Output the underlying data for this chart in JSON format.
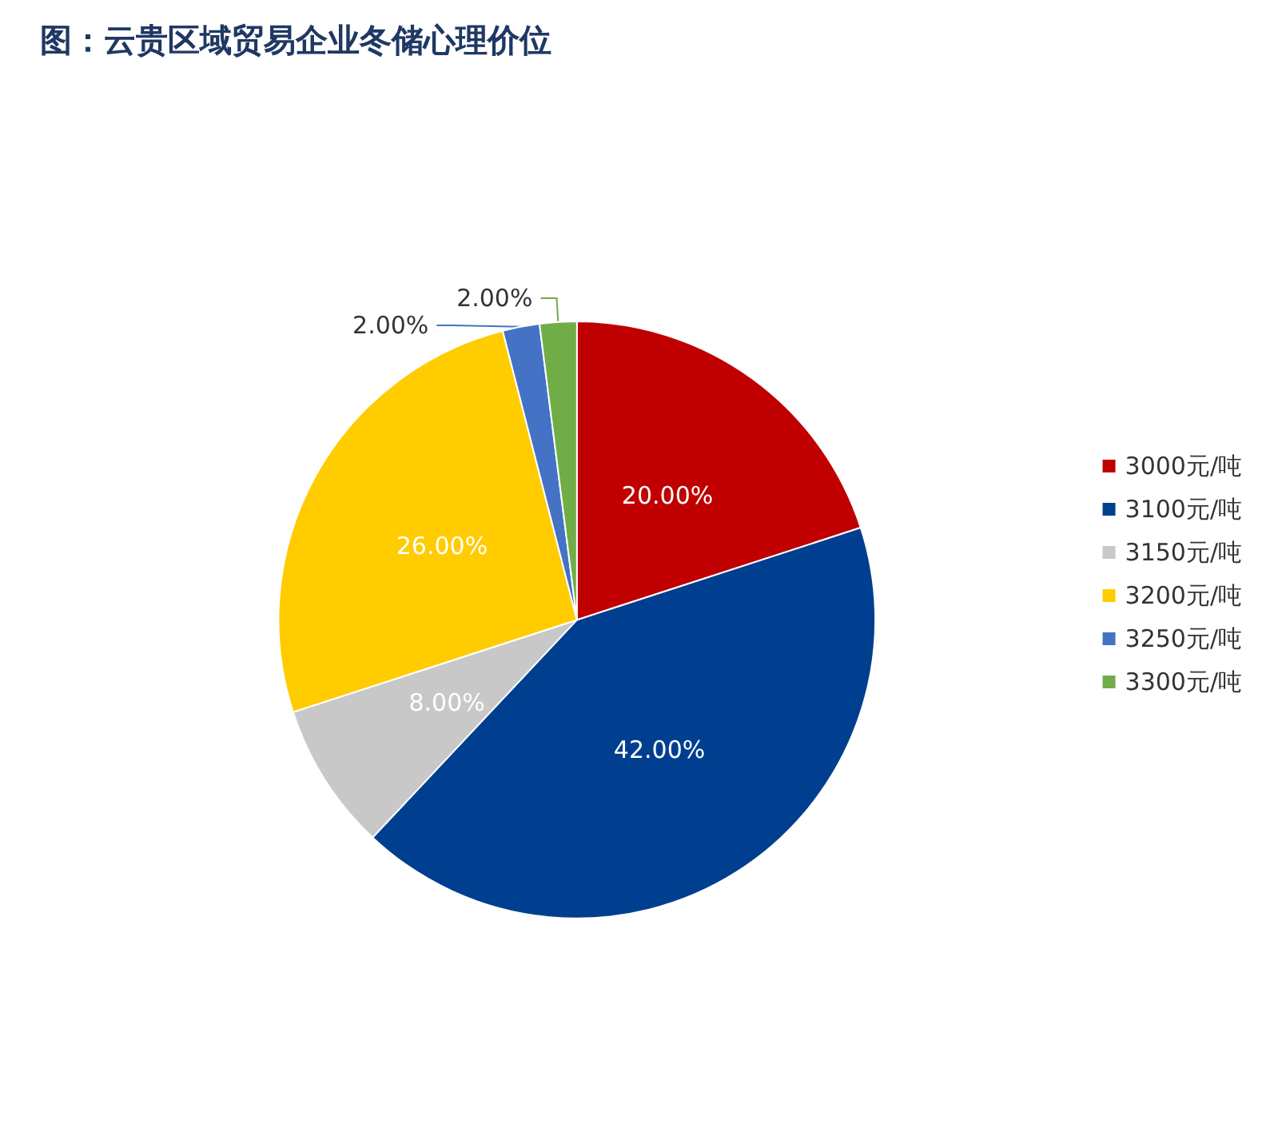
{
  "chart_data": {
    "type": "pie",
    "title": "图：云贵区域贸易企业冬储心理价位",
    "categories": [
      "3000元/吨",
      "3100元/吨",
      "3150元/吨",
      "3200元/吨",
      "3250元/吨",
      "3300元/吨"
    ],
    "values": [
      20,
      42,
      8,
      26,
      2,
      2
    ],
    "colors": [
      "#c00000",
      "#003f8f",
      "#c8c8c8",
      "#ffcc00",
      "#4472c4",
      "#70ad47"
    ],
    "value_labels": [
      "20.00%",
      "42.00%",
      "8.00%",
      "26.00%",
      "2.00%",
      "2.00%"
    ],
    "legend": "right"
  }
}
